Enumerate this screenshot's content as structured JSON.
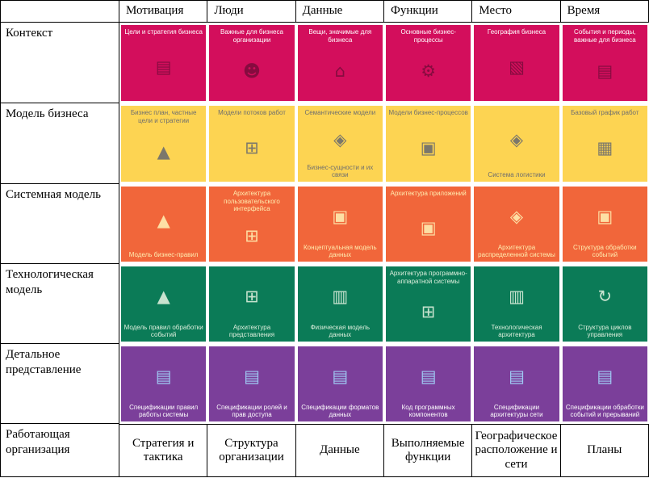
{
  "header": {
    "columns": [
      "Мотивация",
      "Люди",
      "Данные",
      "Функции",
      "Место",
      "Время"
    ]
  },
  "rows": [
    {
      "label": "Контекст",
      "color": "#d30e5c",
      "text_color": "#ffffff",
      "cells": [
        {
          "label": "Цели и стратегия бизнеса",
          "icon": "strategy-document-icon"
        },
        {
          "label": "Важные для бизнеса организации",
          "icon": "people-icon"
        },
        {
          "label": "Вещи, значимые для бизнеса",
          "icon": "buildings-icon"
        },
        {
          "label": "Основные бизнес-процессы",
          "icon": "gears-icon"
        },
        {
          "label": "География бизнеса",
          "icon": "world-map-icon"
        },
        {
          "label": "События и периоды, важные для бизнеса",
          "icon": "calendar-document-icon"
        }
      ]
    },
    {
      "label": "Модель бизнеса",
      "color": "#fdd452",
      "text_color": "#6e6e6e",
      "cells": [
        {
          "label": "Бизнес план, частные цели и стратегии",
          "icon": "pyramid-icon"
        },
        {
          "label": "Модели потоков работ",
          "icon": "org-chart-icon"
        },
        {
          "label": "Семантические модели",
          "label2": "Бизнес-сущности и их связи",
          "icon": "entity-diagram-icon"
        },
        {
          "label": "Модели бизнес-процессов",
          "icon": "process-flow-icon"
        },
        {
          "label": "Система логистики",
          "icon": "network-nodes-icon"
        },
        {
          "label": "Базовый график работ",
          "icon": "schedule-icon"
        }
      ]
    },
    {
      "label": "Системная модель",
      "color": "#f1663a",
      "text_color": "#ffedb0",
      "cells": [
        {
          "label": "Модель бизнес-правил",
          "icon": "pyramid-icon"
        },
        {
          "label": "Архитектура пользовательского интерфейса",
          "icon": "org-chart-icon"
        },
        {
          "label": "Концептуальная модель данных",
          "icon": "data-model-icon"
        },
        {
          "label": "Архитектура приложений",
          "icon": "process-flow-icon"
        },
        {
          "label": "Архитектура распределенной системы",
          "icon": "distributed-nodes-icon"
        },
        {
          "label": "Структура обработки событий",
          "icon": "event-flow-icon"
        }
      ]
    },
    {
      "label": "Технологическая модель",
      "color": "#0b7b57",
      "text_color": "#ddefdd",
      "cells": [
        {
          "label": "Модель правил обработки событий",
          "icon": "pyramid-icon"
        },
        {
          "label": "Архитектура представления",
          "icon": "org-chart-icon"
        },
        {
          "label": "Физическая модель данных",
          "icon": "database-icon"
        },
        {
          "label": "Архитектура программно-аппаратной системы",
          "icon": "hardware-tree-icon"
        },
        {
          "label": "Технологическая архитектура",
          "icon": "tech-stack-icon"
        },
        {
          "label": "Структура циклов управления",
          "icon": "control-cycle-icon"
        }
      ]
    },
    {
      "label": "Детальное представление",
      "color": "#7b3f9a",
      "text_color": "#ffffff",
      "cells": [
        {
          "label": "Спецификации правил работы системы",
          "icon": "spec-document-icon"
        },
        {
          "label": "Спецификации ролей и прав доступа",
          "icon": "spec-document-icon"
        },
        {
          "label": "Спецификации форматов данных",
          "icon": "spec-document-icon"
        },
        {
          "label": "Код программных компонентов",
          "icon": "code-document-icon"
        },
        {
          "label": "Спецификации архитектуры сети",
          "icon": "spec-document-icon"
        },
        {
          "label": "Спецификации обработки событий и прерываний",
          "icon": "spec-document-icon"
        }
      ]
    }
  ],
  "footer": {
    "label": "Работающая организация",
    "cells": [
      "Стратегия и тактика",
      "Структура организации",
      "Данные",
      "Выполняемые функции",
      "Географическое расположение и сети",
      "Планы"
    ]
  }
}
